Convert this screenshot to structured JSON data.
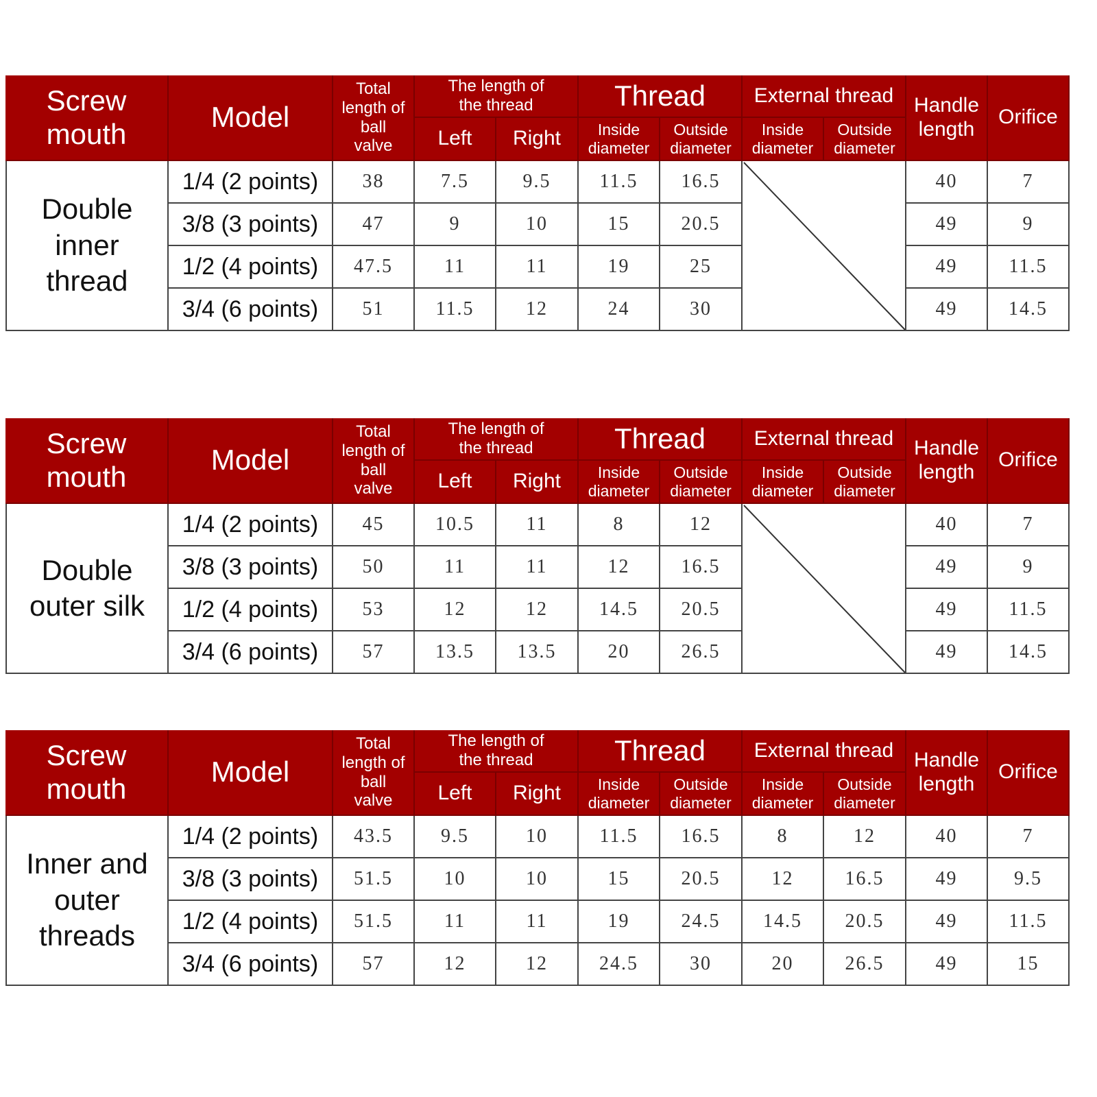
{
  "header": {
    "screw_mouth": "Screw mouth",
    "model": "Model",
    "total_length": "Total length of ball valve",
    "thread_length": "The length of the thread",
    "left": "Left",
    "right": "Right",
    "thread": "Thread",
    "external_thread": "External thread",
    "inside_diameter": "Inside diameter",
    "outside_diameter": "Outside diameter",
    "handle_length": "Handle length",
    "orifice": "Orifice"
  },
  "colors": {
    "header_bg": "#a30000",
    "header_text": "#ffffff"
  },
  "tables": [
    {
      "screw_mouth": "Double inner thread",
      "external_thread_na": true,
      "rows": [
        {
          "model": "1/4 (2 points)",
          "total": "38",
          "left": "7.5",
          "right": "9.5",
          "thread_in": "11.5",
          "thread_out": "16.5",
          "handle": "40",
          "orifice": "7"
        },
        {
          "model": "3/8 (3 points)",
          "total": "47",
          "left": "9",
          "right": "10",
          "thread_in": "15",
          "thread_out": "20.5",
          "handle": "49",
          "orifice": "9"
        },
        {
          "model": "1/2 (4 points)",
          "total": "47.5",
          "left": "11",
          "right": "11",
          "thread_in": "19",
          "thread_out": "25",
          "handle": "49",
          "orifice": "11.5"
        },
        {
          "model": "3/4 (6 points)",
          "total": "51",
          "left": "11.5",
          "right": "12",
          "thread_in": "24",
          "thread_out": "30",
          "handle": "49",
          "orifice": "14.5"
        }
      ]
    },
    {
      "screw_mouth": "Double outer silk",
      "external_thread_na": true,
      "rows": [
        {
          "model": "1/4 (2 points)",
          "total": "45",
          "left": "10.5",
          "right": "11",
          "thread_in": "8",
          "thread_out": "12",
          "handle": "40",
          "orifice": "7"
        },
        {
          "model": "3/8 (3 points)",
          "total": "50",
          "left": "11",
          "right": "11",
          "thread_in": "12",
          "thread_out": "16.5",
          "handle": "49",
          "orifice": "9"
        },
        {
          "model": "1/2 (4 points)",
          "total": "53",
          "left": "12",
          "right": "12",
          "thread_in": "14.5",
          "thread_out": "20.5",
          "handle": "49",
          "orifice": "11.5"
        },
        {
          "model": "3/4 (6 points)",
          "total": "57",
          "left": "13.5",
          "right": "13.5",
          "thread_in": "20",
          "thread_out": "26.5",
          "handle": "49",
          "orifice": "14.5"
        }
      ]
    },
    {
      "screw_mouth": "Inner and outer threads",
      "external_thread_na": false,
      "rows": [
        {
          "model": "1/4 (2 points)",
          "total": "43.5",
          "left": "9.5",
          "right": "10",
          "thread_in": "11.5",
          "thread_out": "16.5",
          "ext_in": "8",
          "ext_out": "12",
          "handle": "40",
          "orifice": "7"
        },
        {
          "model": "3/8 (3 points)",
          "total": "51.5",
          "left": "10",
          "right": "10",
          "thread_in": "15",
          "thread_out": "20.5",
          "ext_in": "12",
          "ext_out": "16.5",
          "handle": "49",
          "orifice": "9.5"
        },
        {
          "model": "1/2 (4 points)",
          "total": "51.5",
          "left": "11",
          "right": "11",
          "thread_in": "19",
          "thread_out": "24.5",
          "ext_in": "14.5",
          "ext_out": "20.5",
          "handle": "49",
          "orifice": "11.5"
        },
        {
          "model": "3/4 (6 points)",
          "total": "57",
          "left": "12",
          "right": "12",
          "thread_in": "24.5",
          "thread_out": "30",
          "ext_in": "20",
          "ext_out": "26.5",
          "handle": "49",
          "orifice": "15"
        }
      ]
    }
  ]
}
